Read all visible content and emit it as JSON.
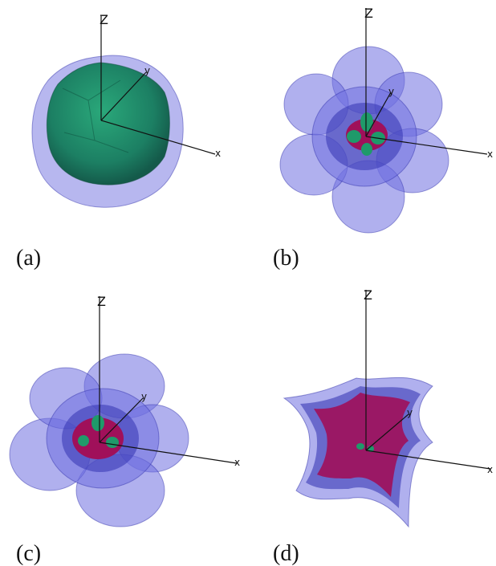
{
  "panels": [
    {
      "id": "a",
      "caption": "(a)",
      "z_label": "Z",
      "x_label": "x",
      "y_label": "y"
    },
    {
      "id": "b",
      "caption": "(b)",
      "z_label": "Z",
      "x_label": "x",
      "y_label": "y"
    },
    {
      "id": "c",
      "caption": "(c)",
      "z_label": "Z",
      "x_label": "x",
      "y_label": "y"
    },
    {
      "id": "d",
      "caption": "(d)",
      "z_label": "Z",
      "x_label": "x",
      "y_label": "y"
    }
  ],
  "colors": {
    "outer_surface": "#6f6fe0",
    "outer_edge": "#2c2ca8",
    "inner_green": "#1f9a6a",
    "inner_magenta": "#a0105a",
    "axis": "#111111"
  }
}
